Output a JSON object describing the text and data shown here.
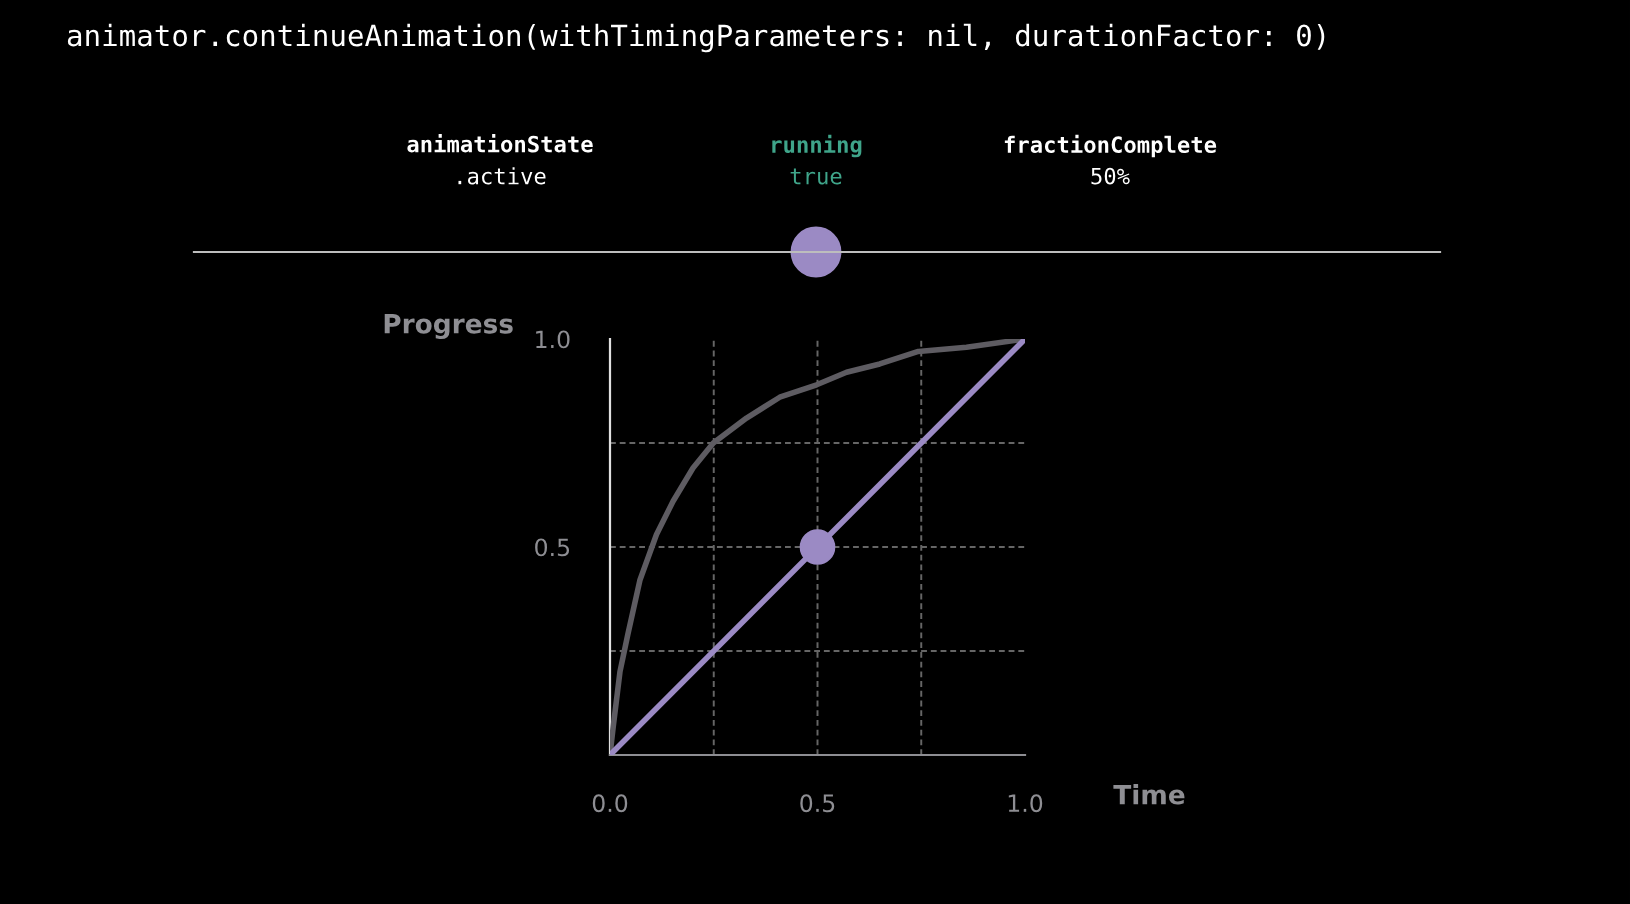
{
  "chart_data": {
    "type": "line",
    "title": "animator.continueAnimation(withTimingParameters: nil, durationFactor: 0)",
    "xlabel": "Time",
    "ylabel": "Progress",
    "annotations": [
      "animationState",
      ".active",
      "running",
      "true",
      "fractionComplete",
      "50%"
    ],
    "series": [
      {
        "color": "#5e5c62",
        "x": [
          0,
          0.008,
          0.024,
          0.043,
          0.072,
          0.112,
          0.152,
          0.2,
          0.249,
          0.329,
          0.409,
          0.498,
          0.57,
          0.65,
          0.743,
          0.859,
          1
        ],
        "values": [
          0,
          0.07,
          0.2,
          0.29,
          0.42,
          0.53,
          0.61,
          0.69,
          0.75,
          0.81,
          0.86,
          0.89,
          0.92,
          0.94,
          0.97,
          0.98,
          1
        ]
      },
      {
        "color": "#9b8ac4",
        "x": [
          0,
          1
        ],
        "values": [
          0,
          1
        ]
      },
      {
        "type": "scatter",
        "marker": "circle",
        "color": "#9b8ac4",
        "x": [
          0.5
        ],
        "values": [
          0.5
        ]
      }
    ],
    "xlim": [
      0,
      1
    ],
    "ylim": [
      0,
      1
    ],
    "xticks": [
      {
        "value": 0,
        "label": "0.0"
      },
      {
        "value": 0.25,
        "label": null
      },
      {
        "value": 0.5,
        "label": "0.5"
      },
      {
        "value": 0.75,
        "label": null
      },
      {
        "value": 1,
        "label": "1.0"
      }
    ],
    "yticks": [
      {
        "value": 0,
        "label": null
      },
      {
        "value": 0.25,
        "label": null
      },
      {
        "value": 0.5,
        "label": "0.5"
      },
      {
        "value": 0.75,
        "label": null
      },
      {
        "value": 1,
        "label": "1.0"
      }
    ],
    "grid": true,
    "legend": false,
    "line_style": "solid"
  }
}
